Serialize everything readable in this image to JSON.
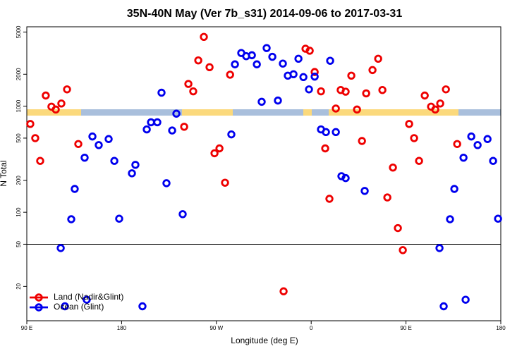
{
  "chart_data": {
    "type": "scatter",
    "title": "35N-40N May (Ver 7b_s31)   2014-09-06 to 2017-03-31",
    "x_label": "Longitude (deg E)",
    "y_label": "N Total",
    "xlim": [
      90,
      540
    ],
    "xticks": [
      {
        "value": 90,
        "label": "90 E"
      },
      180,
      {
        "value": 270,
        "label": "90 W"
      },
      {
        "value": 360,
        "label": "0"
      },
      {
        "value": 450,
        "label": "90 E"
      },
      {
        "value": 540,
        "label": "180"
      }
    ],
    "ylim": [
      9.5,
      5600
    ],
    "y_log": true,
    "yticks": [
      20,
      50,
      100,
      200,
      500,
      1000,
      2000,
      5000
    ],
    "reference_line": 50,
    "legend": "bottom-left",
    "series": [
      {
        "name": "Land (Nadir&Glint)",
        "color": "#ee0000",
        "x": [
          93.3,
          98,
          102.7,
          108,
          113.4,
          117.5,
          122.8,
          128.2,
          138.9,
          239.4,
          243.4,
          248,
          252.8,
          258.1,
          263.5,
          268.2,
          272.9,
          278.2,
          283,
          333.8,
          354.6,
          358.6,
          363.3,
          369.3,
          373.3,
          377.3,
          383.4,
          388,
          392.7,
          398.1,
          403.5,
          408.2,
          412.2,
          418.2,
          423.6,
          427.6,
          432.3,
          437.6,
          442.3,
          447,
          453,
          457.7,
          462.4,
          467.8,
          473.8,
          477.8,
          482.5,
          487.9,
          498.6
        ],
        "values": [
          680,
          500,
          305,
          1260,
          990,
          930,
          1060,
          1440,
          440,
          640,
          1620,
          1380,
          2700,
          4500,
          2330,
          360,
          400,
          190,
          1980,
          18,
          3480,
          3330,
          2100,
          1380,
          400,
          134,
          950,
          1420,
          1370,
          1940,
          930,
          470,
          1320,
          2190,
          2800,
          1420,
          138,
          264,
          71,
          44,
          680,
          500,
          305,
          1260,
          990,
          930,
          1060,
          1440,
          440
        ]
      },
      {
        "name": "Ocean (Glint)",
        "color": "#0000ee",
        "x": [
          122.2,
          126.2,
          132.2,
          135.5,
          144.9,
          146.9,
          152.3,
          158.3,
          167.7,
          173.1,
          177.7,
          189.8,
          193.1,
          199.8,
          203.9,
          207.9,
          213.9,
          217.9,
          222.6,
          228,
          232,
          238,
          284.2,
          287.6,
          293.6,
          298.3,
          303.7,
          308.4,
          313,
          317.7,
          323.1,
          328.4,
          333.1,
          337.8,
          343.2,
          347.9,
          352.6,
          357.9,
          363.3,
          369.3,
          374,
          378,
          383.4,
          388.7,
          392.7,
          410.8,
          481.8,
          485.8,
          491.8,
          495.9,
          504.6,
          506.6,
          512,
          518,
          527.4,
          532.7,
          537.4
        ],
        "values": [
          46,
          13,
          86,
          166,
          327,
          15,
          518,
          430,
          490,
          305,
          87,
          233,
          280,
          13,
          604,
          705,
          705,
          1340,
          188,
          590,
          850,
          96,
          542,
          2480,
          3170,
          2960,
          3020,
          2480,
          1100,
          3530,
          2920,
          1130,
          2520,
          1940,
          2000,
          2800,
          1880,
          1440,
          1900,
          604,
          570,
          2680,
          570,
          219,
          210,
          159,
          46,
          13,
          86,
          166,
          327,
          15,
          518,
          430,
          490,
          305,
          87
        ]
      }
    ]
  }
}
